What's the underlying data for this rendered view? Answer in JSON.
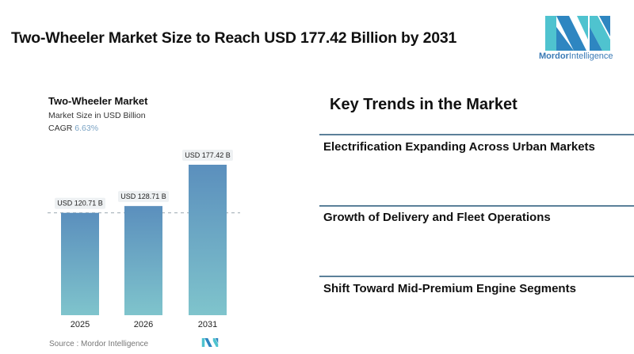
{
  "header": {
    "title": "Two-Wheeler Market Size to Reach USD 177.42 Billion by 2031"
  },
  "logo": {
    "brand_bold": "Mordor",
    "brand_rest": "Intelligence",
    "colors": [
      "#2e86c1",
      "#4fc3cf"
    ]
  },
  "chart_data": {
    "type": "bar",
    "title": "Two-Wheeler Market",
    "subtitle": "Market Size in USD Billion",
    "cagr_label": "CAGR",
    "cagr_value": "6.63%",
    "categories": [
      "2025",
      "2026",
      "2031"
    ],
    "values": [
      120.71,
      128.71,
      177.42
    ],
    "data_labels": [
      "USD 120.71 B",
      "USD 128.71 B",
      "USD 177.42 B"
    ],
    "ylim": [
      0,
      177.42
    ],
    "reference_line": 120.71,
    "grid": false,
    "bar_gradient": [
      "#5b8fbd",
      "#7fc4cc"
    ],
    "source": "Source :  Mordor Intelligence"
  },
  "trends": {
    "title": "Key Trends in the Market",
    "items": [
      "Electrification Expanding Across Urban Markets",
      "Growth of Delivery and Fleet Operations",
      "Shift Toward Mid-Premium Engine Segments"
    ]
  }
}
